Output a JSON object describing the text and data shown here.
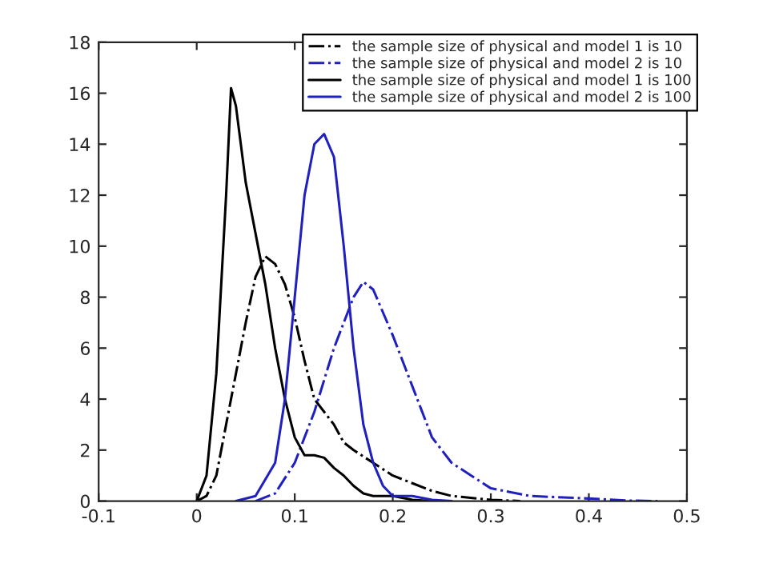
{
  "chart_data": {
    "type": "line",
    "xlim": [
      -0.1,
      0.5
    ],
    "ylim": [
      0,
      18
    ],
    "xticks": [
      -0.1,
      0,
      0.1,
      0.2,
      0.3,
      0.4,
      0.5
    ],
    "yticks": [
      0,
      2,
      4,
      6,
      8,
      10,
      12,
      14,
      16,
      18
    ],
    "grid": false,
    "legend": "top right",
    "marker": "none",
    "series": [
      {
        "name": "the sample size of physical and model 1 is 10",
        "color": "#000000",
        "line_style": "dashdot",
        "x": [
          0,
          0.01,
          0.02,
          0.03,
          0.04,
          0.05,
          0.06,
          0.07,
          0.08,
          0.09,
          0.1,
          0.11,
          0.12,
          0.13,
          0.14,
          0.15,
          0.16,
          0.18,
          0.2,
          0.22,
          0.24,
          0.26,
          0.3,
          0.33
        ],
        "values": [
          0,
          0.2,
          1,
          3,
          5,
          7,
          8.8,
          9.6,
          9.3,
          8.5,
          7.2,
          5.5,
          4,
          3.5,
          3,
          2.3,
          2,
          1.5,
          1,
          0.7,
          0.4,
          0.2,
          0.05,
          0
        ]
      },
      {
        "name": "the sample size of physical and model 2 is 10",
        "color": "#2020c0",
        "line_style": "dashdot",
        "x": [
          0.06,
          0.08,
          0.1,
          0.12,
          0.14,
          0.16,
          0.17,
          0.18,
          0.2,
          0.22,
          0.24,
          0.26,
          0.28,
          0.3,
          0.34,
          0.4,
          0.44,
          0.47
        ],
        "values": [
          0,
          0.3,
          1.5,
          3.5,
          6,
          8,
          8.6,
          8.3,
          6.5,
          4.5,
          2.5,
          1.5,
          1,
          0.5,
          0.2,
          0.1,
          0.02,
          0
        ]
      },
      {
        "name": "the sample size of physical and model 1 is 100",
        "color": "#000000",
        "line_style": "solid",
        "x": [
          0,
          0.01,
          0.02,
          0.03,
          0.035,
          0.04,
          0.05,
          0.06,
          0.07,
          0.08,
          0.09,
          0.1,
          0.11,
          0.12,
          0.13,
          0.14,
          0.15,
          0.16,
          0.17,
          0.18,
          0.2,
          0.22,
          0.24
        ],
        "values": [
          0,
          1,
          5,
          12,
          16.2,
          15.5,
          12.5,
          10.5,
          8.5,
          6,
          4,
          2.5,
          1.8,
          1.8,
          1.7,
          1.3,
          1,
          0.6,
          0.3,
          0.2,
          0.2,
          0.05,
          0
        ]
      },
      {
        "name": "the sample size of physical and model 2 is 100",
        "color": "#2020c0",
        "line_style": "solid",
        "x": [
          0.04,
          0.06,
          0.08,
          0.09,
          0.1,
          0.11,
          0.12,
          0.13,
          0.14,
          0.15,
          0.16,
          0.17,
          0.18,
          0.19,
          0.2,
          0.22,
          0.24,
          0.26
        ],
        "values": [
          0,
          0.2,
          1.5,
          4,
          8,
          12,
          14,
          14.4,
          13.5,
          10,
          6,
          3,
          1.5,
          0.6,
          0.2,
          0.2,
          0.05,
          0
        ]
      }
    ]
  }
}
